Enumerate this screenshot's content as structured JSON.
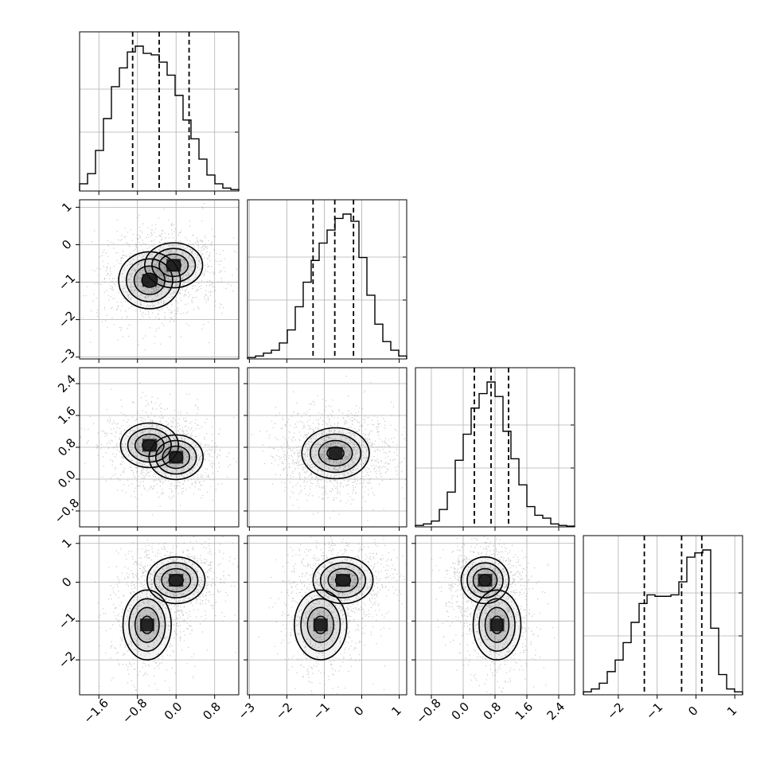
{
  "chart_data": {
    "type": "corner",
    "n_params": 4,
    "params": [
      {
        "range": [
          -2.0,
          1.3
        ],
        "ticks": [
          "−1.6",
          "−0.8",
          "0.0",
          "0.8"
        ],
        "tick_values": [
          -1.6,
          -0.8,
          0.0,
          0.8
        ],
        "quantiles": [
          -0.9,
          -0.35,
          0.27
        ],
        "hist": [
          0.5,
          1.2,
          2.8,
          5.0,
          7.2,
          8.5,
          9.6,
          10.0,
          9.5,
          9.4,
          8.9,
          8.0,
          6.6,
          4.9,
          3.6,
          2.2,
          1.1,
          0.5,
          0.2,
          0.1
        ]
      },
      {
        "range": [
          -3.05,
          1.2
        ],
        "ticks": [
          "−3",
          "−2",
          "−1",
          "0",
          "1"
        ],
        "tick_values": [
          -3,
          -2,
          -1,
          0,
          1
        ],
        "quantiles": [
          -1.3,
          -0.72,
          -0.22
        ],
        "hist": [
          0.1,
          0.2,
          0.4,
          0.6,
          1.1,
          2.0,
          3.6,
          5.3,
          6.8,
          8.0,
          8.9,
          9.7,
          10.0,
          9.5,
          7.0,
          4.4,
          2.4,
          1.2,
          0.6,
          0.2
        ]
      },
      {
        "range": [
          -1.2,
          2.8
        ],
        "ticks": [
          "−0.8",
          "0.0",
          "0.8",
          "1.6",
          "2.4"
        ],
        "tick_values": [
          -0.8,
          0.0,
          0.8,
          1.6,
          2.4
        ],
        "quantiles": [
          0.28,
          0.7,
          1.14
        ],
        "hist": [
          0.1,
          0.2,
          0.4,
          1.2,
          2.4,
          4.6,
          6.4,
          8.2,
          9.2,
          10.0,
          9.0,
          6.6,
          4.7,
          2.9,
          1.4,
          0.8,
          0.6,
          0.2,
          0.1,
          0.05
        ]
      },
      {
        "range": [
          -2.9,
          1.2
        ],
        "ticks": [
          "−2",
          "−1",
          "0",
          "1"
        ],
        "tick_values": [
          -2,
          -1,
          0,
          1
        ],
        "quantiles": [
          -1.33,
          -0.37,
          0.15
        ],
        "hist": [
          0.2,
          0.4,
          0.8,
          1.6,
          2.4,
          3.6,
          5.0,
          6.3,
          6.9,
          6.8,
          6.8,
          6.9,
          7.8,
          9.5,
          9.8,
          10.0,
          4.6,
          1.4,
          0.4,
          0.2
        ]
      }
    ],
    "correlations": [
      {
        "pair": [
          1,
          0
        ],
        "modes": [
          {
            "mx": -0.55,
            "my": -0.95,
            "sx": 0.32,
            "sy": 0.38,
            "w": 0.55
          },
          {
            "mx": -0.05,
            "my": -0.55,
            "sx": 0.3,
            "sy": 0.3,
            "w": 0.45
          }
        ]
      },
      {
        "pair": [
          2,
          0
        ],
        "modes": [
          {
            "mx": -0.55,
            "my": 0.85,
            "sx": 0.3,
            "sy": 0.28,
            "w": 0.55
          },
          {
            "mx": 0.0,
            "my": 0.55,
            "sx": 0.28,
            "sy": 0.28,
            "w": 0.45
          }
        ]
      },
      {
        "pair": [
          2,
          1
        ],
        "modes": [
          {
            "mx": -0.7,
            "my": 0.65,
            "sx": 0.45,
            "sy": 0.32,
            "w": 1.0
          }
        ]
      },
      {
        "pair": [
          3,
          0
        ],
        "modes": [
          {
            "mx": 0.0,
            "my": 0.05,
            "sx": 0.3,
            "sy": 0.3,
            "w": 0.6
          },
          {
            "mx": -0.6,
            "my": -1.1,
            "sx": 0.25,
            "sy": 0.45,
            "w": 0.4
          }
        ]
      },
      {
        "pair": [
          3,
          1
        ],
        "modes": [
          {
            "mx": -0.5,
            "my": 0.05,
            "sx": 0.4,
            "sy": 0.3,
            "w": 0.6
          },
          {
            "mx": -1.1,
            "my": -1.1,
            "sx": 0.35,
            "sy": 0.45,
            "w": 0.4
          }
        ]
      },
      {
        "pair": [
          3,
          2
        ],
        "modes": [
          {
            "mx": 0.55,
            "my": 0.05,
            "sx": 0.3,
            "sy": 0.3,
            "w": 0.6
          },
          {
            "mx": 0.85,
            "my": -1.1,
            "sx": 0.3,
            "sy": 0.45,
            "w": 0.4
          }
        ]
      }
    ],
    "xlabel": "",
    "ylabel": "",
    "colors": {
      "line": "#000000",
      "grid": "#b0b0b0",
      "points": "#888888",
      "density": "#000000"
    },
    "grid": true
  }
}
